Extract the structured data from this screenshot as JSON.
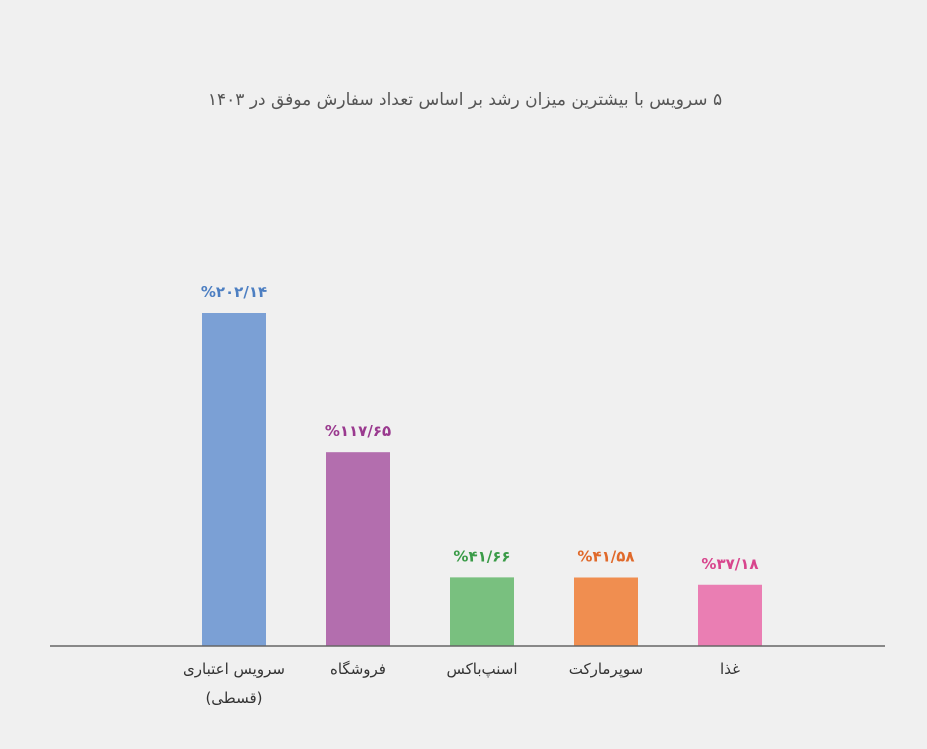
{
  "chart_data": {
    "type": "bar",
    "title": "۵ سرویس با بیشترین میزان رشد بر اساس تعداد سفارش موفق در ۱۴۰۳",
    "categories": [
      [
        "سرویس اعتباری",
        "(قسطی)"
      ],
      [
        "فروشگاه"
      ],
      [
        "اسنپ‌باکس"
      ],
      [
        "سوپرمارکت"
      ],
      [
        "غذا"
      ]
    ],
    "values": [
      202.14,
      117.65,
      41.66,
      41.58,
      37.18
    ],
    "value_labels": [
      "%۲۰۲/۱۴",
      "%۱۱۷/۶۵",
      "%۴۱/۶۶",
      "%۴۱/۵۸",
      "%۳۷/۱۸"
    ],
    "colors": [
      "#7ba0d5",
      "#b36eae",
      "#79c07f",
      "#f08e50",
      "#ea7eb3"
    ],
    "label_colors": [
      "#4d7fc2",
      "#9a3a8f",
      "#3a9b47",
      "#e0692a",
      "#d8458d"
    ],
    "ylim": [
      0,
      202.14
    ],
    "grid": false,
    "legend": "none"
  }
}
